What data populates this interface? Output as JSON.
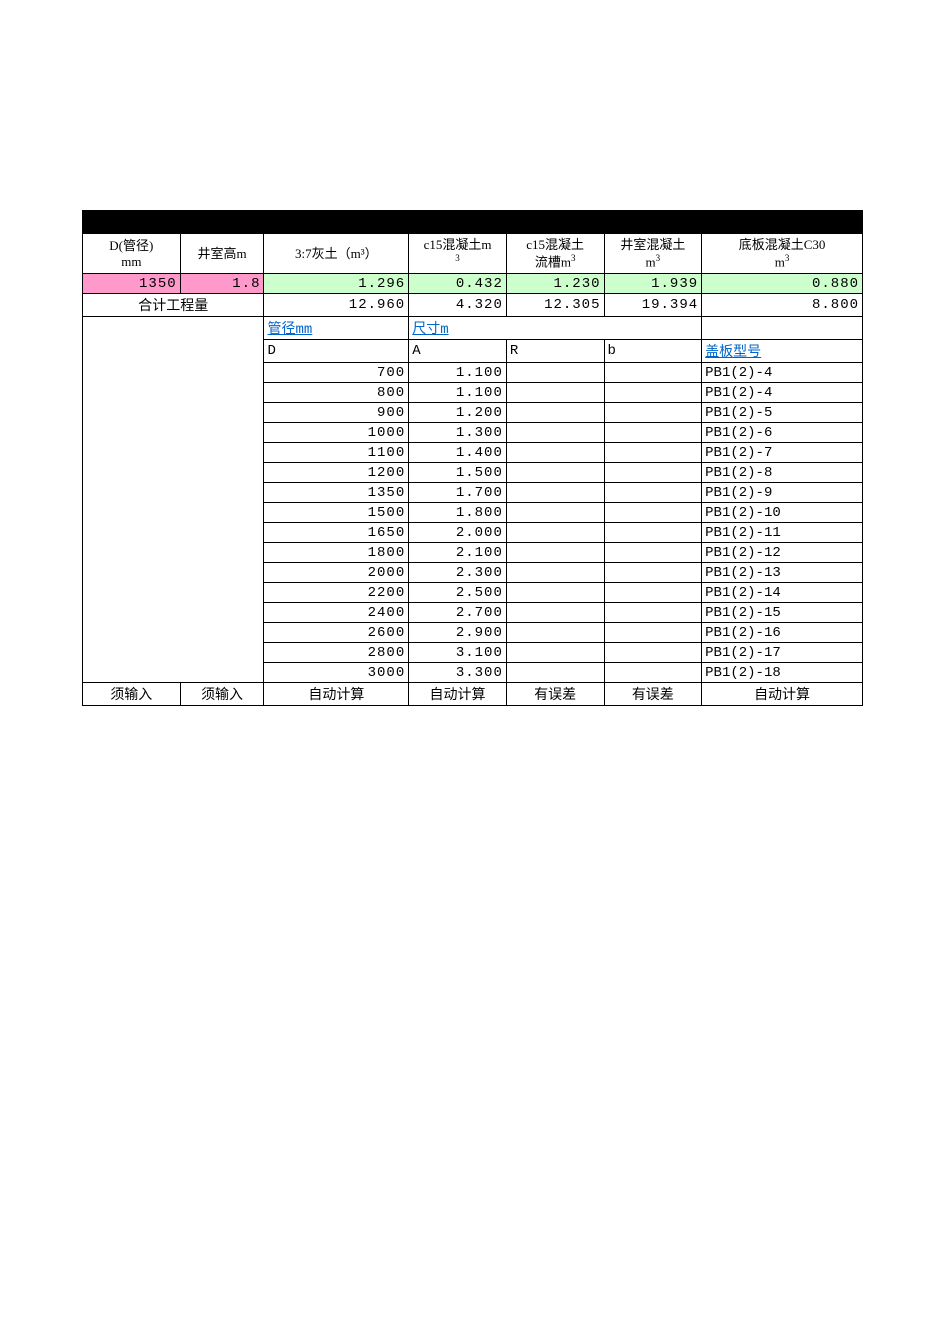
{
  "colors": {
    "blackbar": "#000000",
    "pink": "#ff99cc",
    "lightgreen": "#ccffcc",
    "linkblue": "#0066cc",
    "border": "#000000",
    "bg": "#ffffff",
    "text": "#000000"
  },
  "header": {
    "c1": "D(管径)\nmm",
    "c2": "井室高m",
    "c3": "3:7灰土（m³）",
    "c4": "c15混凝土m³",
    "c5": "c15混凝土\n流槽m³",
    "c6": "井室混凝土\nm³",
    "c7": "底板混凝土C30\nm³"
  },
  "row_input": {
    "c1": "1350",
    "c2": "1.8",
    "c3": "1.296",
    "c4": "0.432",
    "c5": "1.230",
    "c6": "1.939",
    "c7": "0.880"
  },
  "row_total": {
    "label": "合计工程量",
    "c3": "12.960",
    "c4": "4.320",
    "c5": "12.305",
    "c6": "19.394",
    "c7": "8.800"
  },
  "sub_hdr1": {
    "c3": "管径mm",
    "c4": "尺寸m"
  },
  "sub_hdr2": {
    "c3": "D",
    "c4": "A",
    "c5": "R",
    "c6": "b",
    "c7": "盖板型号"
  },
  "lookup": [
    {
      "D": "700",
      "A": "1.100",
      "R": "",
      "b": "",
      "model": "PB1(2)-4"
    },
    {
      "D": "800",
      "A": "1.100",
      "R": "",
      "b": "",
      "model": "PB1(2)-4"
    },
    {
      "D": "900",
      "A": "1.200",
      "R": "",
      "b": "",
      "model": "PB1(2)-5"
    },
    {
      "D": "1000",
      "A": "1.300",
      "R": "",
      "b": "",
      "model": "PB1(2)-6"
    },
    {
      "D": "1100",
      "A": "1.400",
      "R": "",
      "b": "",
      "model": "PB1(2)-7"
    },
    {
      "D": "1200",
      "A": "1.500",
      "R": "",
      "b": "",
      "model": "PB1(2)-8"
    },
    {
      "D": "1350",
      "A": "1.700",
      "R": "",
      "b": "",
      "model": "PB1(2)-9"
    },
    {
      "D": "1500",
      "A": "1.800",
      "R": "",
      "b": "",
      "model": "PB1(2)-10"
    },
    {
      "D": "1650",
      "A": "2.000",
      "R": "",
      "b": "",
      "model": "PB1(2)-11"
    },
    {
      "D": "1800",
      "A": "2.100",
      "R": "",
      "b": "",
      "model": "PB1(2)-12"
    },
    {
      "D": "2000",
      "A": "2.300",
      "R": "",
      "b": "",
      "model": "PB1(2)-13"
    },
    {
      "D": "2200",
      "A": "2.500",
      "R": "",
      "b": "",
      "model": "PB1(2)-14"
    },
    {
      "D": "2400",
      "A": "2.700",
      "R": "",
      "b": "",
      "model": "PB1(2)-15"
    },
    {
      "D": "2600",
      "A": "2.900",
      "R": "",
      "b": "",
      "model": "PB1(2)-16"
    },
    {
      "D": "2800",
      "A": "3.100",
      "R": "",
      "b": "",
      "model": "PB1(2)-17"
    },
    {
      "D": "3000",
      "A": "3.300",
      "R": "",
      "b": "",
      "model": "PB1(2)-18"
    }
  ],
  "footer": {
    "c1": "须输入",
    "c2": "须输入",
    "c3": "自动计算",
    "c4": "自动计算",
    "c5": "有误差",
    "c6": "有误差",
    "c7": "自动计算"
  }
}
